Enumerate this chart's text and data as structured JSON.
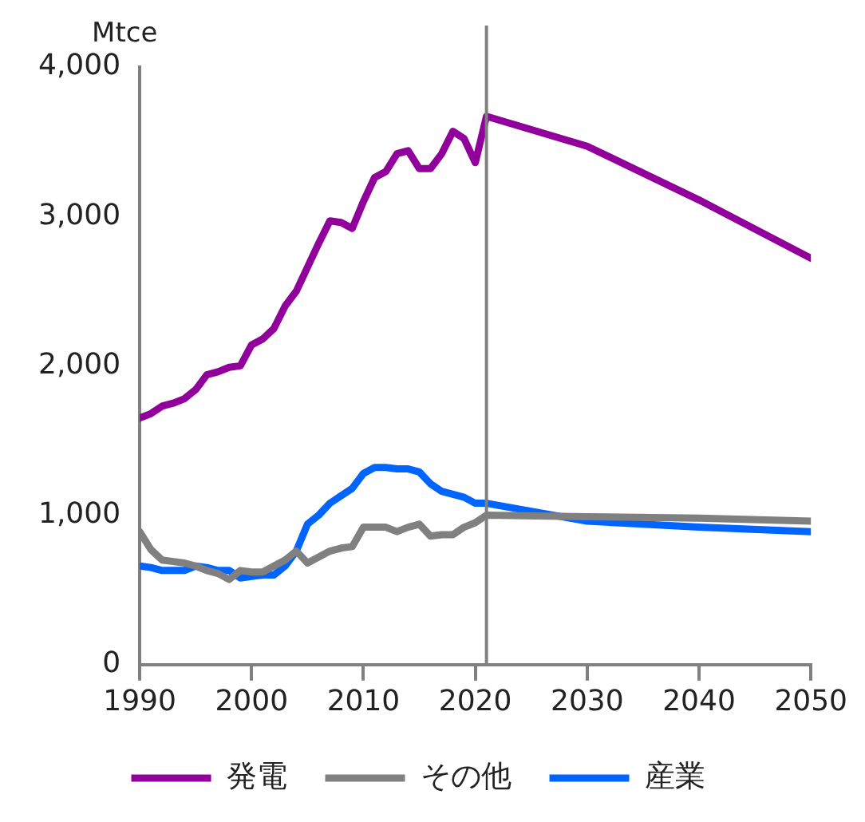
{
  "chart_data": {
    "type": "line",
    "ylabel": "Mtce",
    "x": [
      1990,
      1991,
      1992,
      1993,
      1994,
      1995,
      1996,
      1997,
      1998,
      1999,
      2000,
      2001,
      2002,
      2003,
      2004,
      2005,
      2006,
      2007,
      2008,
      2009,
      2010,
      2011,
      2012,
      2013,
      2014,
      2015,
      2016,
      2017,
      2018,
      2019,
      2020,
      2021,
      2030,
      2040,
      2050
    ],
    "series": [
      {
        "name": "発電",
        "color": "#91009b",
        "values": [
          1650,
          1680,
          1730,
          1750,
          1780,
          1840,
          1940,
          1960,
          1990,
          2000,
          2140,
          2180,
          2250,
          2400,
          2500,
          2660,
          2820,
          2970,
          2960,
          2920,
          3100,
          3260,
          3300,
          3420,
          3440,
          3320,
          3320,
          3420,
          3570,
          3520,
          3360,
          3670,
          3470,
          3110,
          2720
        ]
      },
      {
        "name": "その他",
        "color": "#808080",
        "values": [
          890,
          770,
          700,
          690,
          680,
          660,
          630,
          610,
          570,
          630,
          620,
          620,
          660,
          700,
          760,
          680,
          720,
          760,
          780,
          790,
          920,
          920,
          920,
          890,
          920,
          940,
          860,
          870,
          870,
          920,
          950,
          1000,
          990,
          980,
          960
        ]
      },
      {
        "name": "産業",
        "color": "#0064ff",
        "values": [
          660,
          650,
          630,
          630,
          630,
          660,
          650,
          630,
          630,
          580,
          590,
          600,
          600,
          660,
          760,
          940,
          1000,
          1080,
          1130,
          1180,
          1280,
          1320,
          1320,
          1310,
          1310,
          1290,
          1210,
          1160,
          1140,
          1120,
          1080,
          1080,
          960,
          920,
          890
        ]
      }
    ],
    "xlim": [
      1990,
      2050
    ],
    "xticks": [
      1990,
      2000,
      2010,
      2020,
      2030,
      2040,
      2050
    ],
    "ylim": [
      0,
      4000
    ],
    "yticks": [
      0,
      {
        "value": 1000,
        "label": "1,000"
      },
      {
        "value": 2000,
        "label": "2,000"
      },
      {
        "value": 3000,
        "label": "3,000"
      },
      {
        "value": 4000,
        "label": "4,000"
      }
    ],
    "ref_lines": [
      {
        "axis": "x",
        "value": 2021,
        "color": "#808080",
        "line_style": "solid"
      }
    ],
    "grid": false,
    "legend": "bottom",
    "marker": "none",
    "line_style": "solid"
  }
}
